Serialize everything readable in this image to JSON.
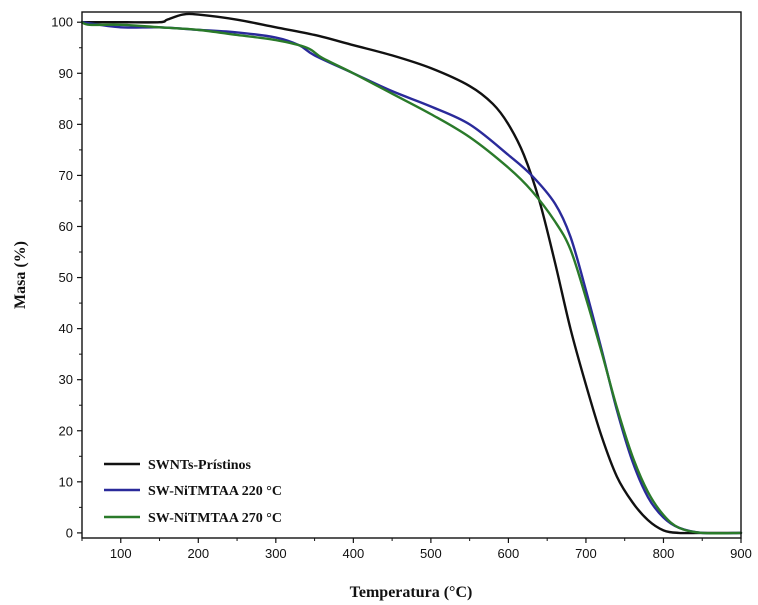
{
  "chart_data": {
    "type": "line",
    "xlabel": "Temperatura (°C)",
    "ylabel": "Masa (%)",
    "xlim": [
      50,
      900
    ],
    "ylim": [
      -1,
      102
    ],
    "xticks": [
      100,
      200,
      300,
      400,
      500,
      600,
      700,
      800,
      900
    ],
    "yticks": [
      0,
      10,
      20,
      30,
      40,
      50,
      60,
      70,
      80,
      90,
      100
    ],
    "grid": false,
    "legend_position": "bottom-left",
    "series": [
      {
        "name": "SWNTs-Prístinos",
        "color": "#111111",
        "x": [
          50,
          100,
          150,
          160,
          180,
          200,
          250,
          300,
          350,
          400,
          450,
          500,
          550,
          580,
          600,
          620,
          640,
          660,
          680,
          700,
          720,
          740,
          760,
          780,
          800,
          820,
          850,
          900
        ],
        "y": [
          100,
          100,
          100,
          100.5,
          101.5,
          101.5,
          100.5,
          99,
          97.5,
          95.5,
          93.5,
          91,
          87.5,
          84,
          80,
          74,
          65,
          53,
          40,
          29,
          19,
          11,
          6,
          2.5,
          0.5,
          0,
          0,
          0
        ]
      },
      {
        "name": "SW-NiTMTAA 220 °C",
        "color": "#2a2a9a",
        "x": [
          50,
          100,
          150,
          200,
          250,
          300,
          330,
          350,
          400,
          450,
          500,
          550,
          600,
          630,
          660,
          680,
          700,
          720,
          740,
          760,
          780,
          800,
          820,
          850,
          900
        ],
        "y": [
          100,
          99,
          99,
          98.5,
          98,
          97,
          95.5,
          93.5,
          90,
          86.5,
          83.5,
          80,
          74,
          70,
          64.5,
          58,
          47.5,
          36,
          24,
          14,
          7,
          3,
          1,
          0,
          0
        ]
      },
      {
        "name": "SW-NiTMTAA 270 °C",
        "color": "#2a7a2a",
        "x": [
          50,
          60,
          100,
          150,
          200,
          250,
          300,
          340,
          360,
          400,
          450,
          500,
          550,
          600,
          630,
          660,
          680,
          700,
          720,
          740,
          760,
          780,
          800,
          820,
          850,
          900
        ],
        "y": [
          100,
          99.5,
          99.5,
          99,
          98.5,
          97.5,
          96.5,
          95,
          93,
          90,
          86,
          82,
          77.5,
          71.5,
          67,
          61,
          55.5,
          46,
          35.5,
          24.5,
          15,
          8,
          3.5,
          1,
          0,
          0
        ]
      }
    ]
  }
}
